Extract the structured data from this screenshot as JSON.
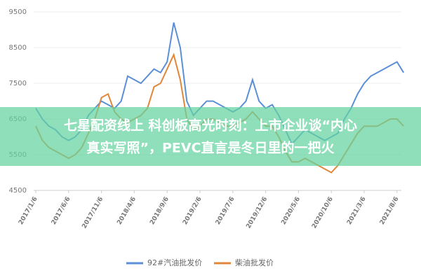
{
  "chart_data": {
    "type": "line",
    "categories": [
      "2017/1/6",
      null,
      null,
      null,
      null,
      "2017/6/6",
      null,
      null,
      null,
      null,
      "2017/11/6",
      null,
      null,
      null,
      null,
      "2018/4/6",
      null,
      null,
      null,
      null,
      "2018/9/6",
      null,
      null,
      null,
      null,
      "2019/2/6",
      null,
      null,
      null,
      null,
      "2019/7/6",
      null,
      null,
      null,
      null,
      "2019/12/6",
      null,
      null,
      null,
      null,
      "2020/5/6",
      null,
      null,
      null,
      null,
      "2020/10/6",
      null,
      null,
      null,
      null,
      "2021/3/6",
      null,
      null,
      null,
      null,
      "2021/8/6",
      null
    ],
    "series": [
      {
        "name": "92#汽油批发价",
        "color": "#5b8fd6",
        "values": [
          6800,
          6500,
          6300,
          6200,
          6000,
          5900,
          6000,
          6200,
          6600,
          6800,
          7000,
          6900,
          6800,
          7000,
          7700,
          7600,
          7500,
          7700,
          7900,
          7800,
          8100,
          9200,
          8500,
          7000,
          6600,
          6800,
          7000,
          7000,
          6900,
          6800,
          6700,
          6800,
          7000,
          7600,
          7000,
          6800,
          6900,
          6600,
          6200,
          5800,
          6000,
          6200,
          6100,
          6000,
          5900,
          6000,
          6100,
          6500,
          6800,
          7200,
          7500,
          7700,
          7800,
          7900,
          8000,
          8100,
          7800
        ]
      },
      {
        "name": "柴油批发价",
        "color": "#e0883a",
        "values": [
          6300,
          5900,
          5700,
          5600,
          5500,
          5400,
          5500,
          5700,
          6100,
          6500,
          7100,
          7200,
          6700,
          6500,
          6400,
          6500,
          6600,
          6800,
          7400,
          7500,
          7900,
          8300,
          7600,
          6500,
          6200,
          6300,
          6500,
          6500,
          6400,
          6300,
          6300,
          6400,
          6500,
          6700,
          6500,
          6300,
          6300,
          6000,
          5600,
          5300,
          5300,
          5400,
          5300,
          5200,
          5100,
          5000,
          5200,
          5500,
          5800,
          6100,
          6300,
          6300,
          6300,
          6400,
          6500,
          6500,
          6300
        ]
      }
    ],
    "ylim": [
      4500,
      9500
    ],
    "yticks": [
      4500,
      5500,
      6500,
      7500,
      8500,
      9500
    ],
    "grid": true,
    "legend": "bottom",
    "annotations": [
      "七星配资线上 科创板高光时刻：上市企业谈“内心",
      "真实写照”，PEVC直言是冬日里的一把火"
    ]
  }
}
